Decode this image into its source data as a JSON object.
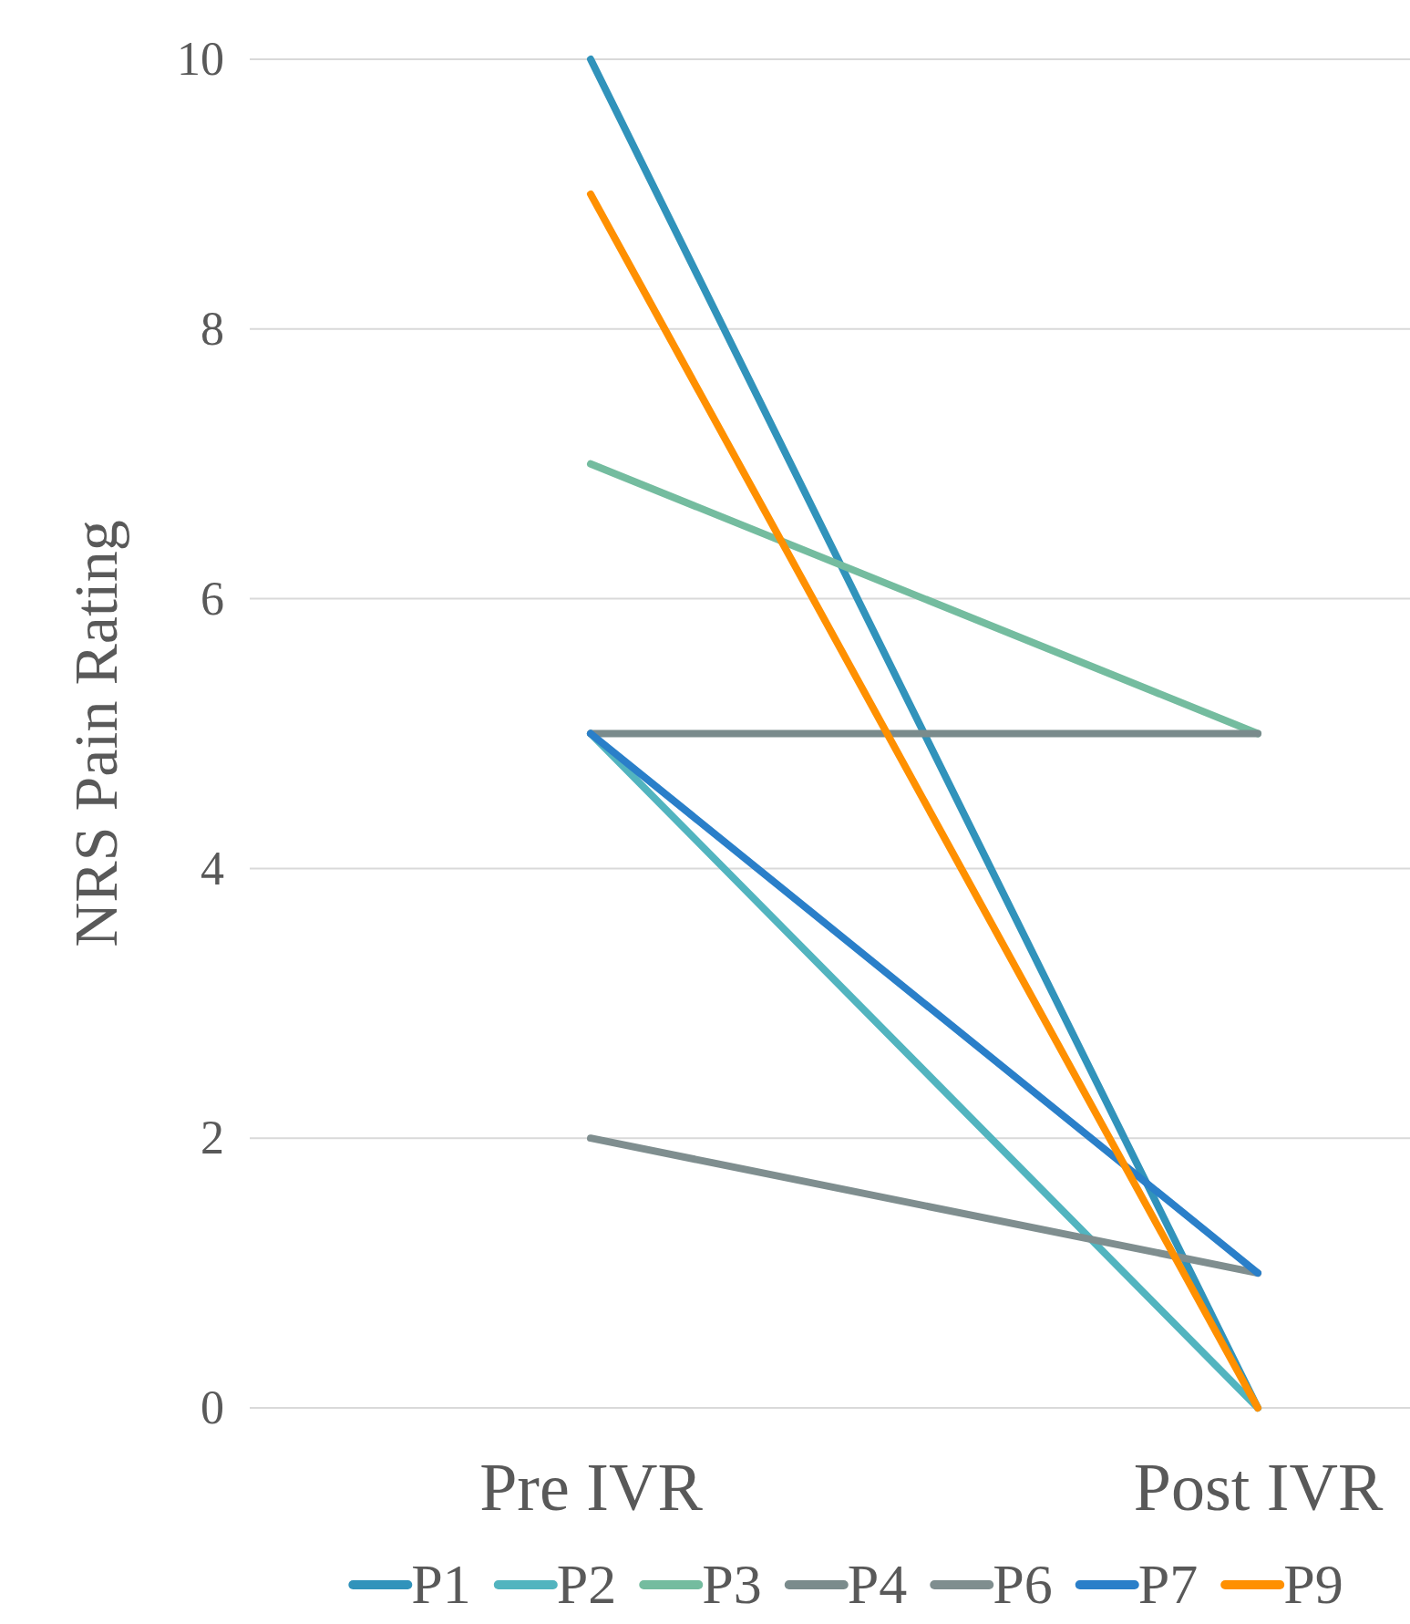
{
  "chart_data": {
    "type": "line",
    "ylabel": "NRS Pain Rating",
    "categories": [
      "Pre IVR",
      "Post IVR"
    ],
    "ylim": [
      0,
      10
    ],
    "yticks": [
      0,
      2,
      4,
      6,
      8,
      10
    ],
    "grid": "y",
    "legend": "bottom",
    "marker": "none",
    "series": [
      {
        "name": "P1",
        "color": "#3193bb",
        "values": [
          10,
          0
        ]
      },
      {
        "name": "P2",
        "color": "#52b4bf",
        "values": [
          5,
          0
        ]
      },
      {
        "name": "P3",
        "color": "#74bc9f",
        "values": [
          7,
          5
        ]
      },
      {
        "name": "P4",
        "color": "#7a8b8c",
        "values": [
          5,
          5
        ]
      },
      {
        "name": "P6",
        "color": "#7f8e8f",
        "values": [
          2,
          1
        ]
      },
      {
        "name": "P7",
        "color": "#2a7fc9",
        "values": [
          5,
          1
        ]
      },
      {
        "name": "P9",
        "color": "#ff9000",
        "values": [
          9,
          0
        ]
      }
    ]
  }
}
